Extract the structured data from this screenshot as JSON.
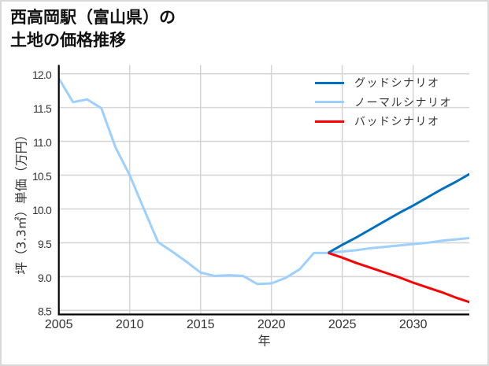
{
  "title": {
    "line1": "西高岡駅（富山県）の",
    "line2": "土地の価格推移"
  },
  "chart_data": {
    "type": "line",
    "title": "西高岡駅（富山県）の土地の価格推移",
    "xlabel": "年",
    "ylabel": "坪（3.3㎡）単価（万円）",
    "xlim": [
      2005,
      2034
    ],
    "ylim": [
      8.44,
      12.13
    ],
    "xticks": [
      2005,
      2010,
      2015,
      2020,
      2025,
      2030
    ],
    "xtick_labels": [
      "2005",
      "2010",
      "2015",
      "2020",
      "2025",
      "2030"
    ],
    "yticks": [
      8.5,
      9.0,
      9.5,
      10.0,
      10.5,
      11.0,
      11.5,
      12.0
    ],
    "ytick_labels": [
      "8.5",
      "9.0",
      "9.5",
      "10.0",
      "10.5",
      "11.0",
      "11.5",
      "12.0"
    ],
    "grid": true,
    "legend_position": "upper right",
    "x": [
      2005,
      2006,
      2007,
      2008,
      2009,
      2010,
      2011,
      2012,
      2013,
      2014,
      2015,
      2016,
      2017,
      2018,
      2019,
      2020,
      2021,
      2022,
      2023,
      2024,
      2025,
      2026,
      2027,
      2028,
      2029,
      2030,
      2031,
      2032,
      2033,
      2034
    ],
    "series": [
      {
        "name": "グッドシナリオ",
        "color": "#0070c0",
        "values": [
          null,
          null,
          null,
          null,
          null,
          null,
          null,
          null,
          null,
          null,
          null,
          null,
          null,
          null,
          null,
          null,
          null,
          null,
          null,
          9.35,
          9.47,
          9.58,
          9.7,
          9.82,
          9.94,
          10.05,
          10.17,
          10.29,
          10.4,
          10.52
        ]
      },
      {
        "name": "ノーマルシナリオ",
        "color": "#9dcfff",
        "values": [
          11.93,
          11.58,
          11.62,
          11.49,
          10.91,
          10.5,
          10.0,
          9.51,
          9.37,
          9.22,
          9.06,
          9.01,
          9.02,
          9.01,
          8.89,
          8.9,
          8.98,
          9.11,
          9.35,
          9.35,
          9.37,
          9.39,
          9.42,
          9.44,
          9.46,
          9.48,
          9.5,
          9.53,
          9.55,
          9.57
        ]
      },
      {
        "name": "バッドシナリオ",
        "color": "#ff0000",
        "values": [
          null,
          null,
          null,
          null,
          null,
          null,
          null,
          null,
          null,
          null,
          null,
          null,
          null,
          null,
          null,
          null,
          null,
          null,
          null,
          9.35,
          9.28,
          9.2,
          9.13,
          9.06,
          8.99,
          8.91,
          8.84,
          8.77,
          8.69,
          8.62
        ]
      }
    ]
  }
}
